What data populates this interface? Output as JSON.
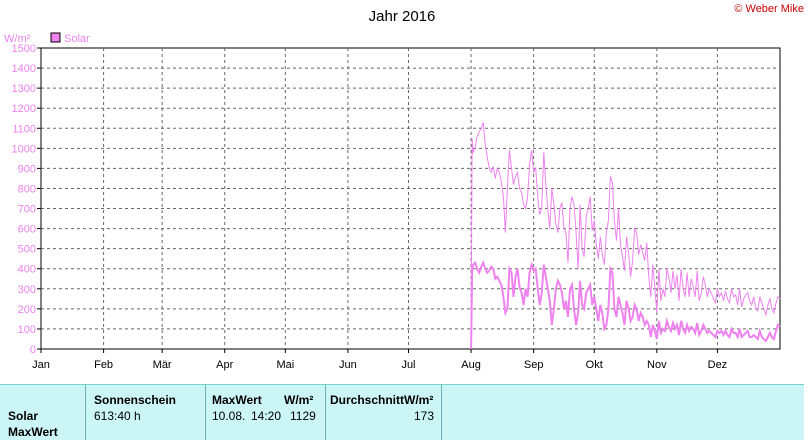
{
  "chart_data": {
    "type": "line",
    "title": "Jahr 2016",
    "ylabel": "W/m²",
    "ylim": [
      0,
      1500
    ],
    "yticks": [
      0,
      100,
      200,
      300,
      400,
      500,
      600,
      700,
      800,
      900,
      1000,
      1100,
      1200,
      1300,
      1400,
      1500
    ],
    "xlim": [
      0,
      366
    ],
    "months": [
      "Jan",
      "Feb",
      "Mär",
      "Apr",
      "Mai",
      "Jun",
      "Jul",
      "Aug",
      "Sep",
      "Okt",
      "Nov",
      "Dez"
    ],
    "month_start_days": [
      0,
      31,
      60,
      91,
      121,
      152,
      182,
      213,
      244,
      274,
      305,
      335
    ],
    "grid": true,
    "legend": "top-left",
    "line_color": "#ee82ee",
    "series": [
      {
        "name": "Solar",
        "x": [
          213,
          213.5,
          214,
          215,
          216,
          217,
          218,
          219,
          220,
          221,
          222,
          223,
          224,
          225,
          226,
          227,
          228,
          229,
          230,
          231,
          232,
          233,
          234,
          235,
          236,
          237,
          238,
          239,
          240,
          241,
          242,
          243,
          244,
          245,
          246,
          247,
          248,
          249,
          250,
          251,
          252,
          253,
          254,
          255,
          256,
          257,
          258,
          259,
          260,
          261,
          262,
          263,
          264,
          265,
          266,
          267,
          268,
          269,
          270,
          271,
          272,
          273,
          274,
          275,
          276,
          277,
          278,
          279,
          280,
          281,
          282,
          283,
          284,
          285,
          286,
          287,
          288,
          289,
          290,
          291,
          292,
          293,
          294,
          295,
          296,
          297,
          298,
          299,
          300,
          301,
          302,
          303,
          304,
          305,
          306,
          307,
          308,
          309,
          310,
          311,
          312,
          313,
          314,
          315,
          316,
          317,
          318,
          319,
          320,
          321,
          322,
          323,
          324,
          325,
          326,
          327,
          328,
          329,
          330,
          331,
          332,
          333,
          334,
          335,
          336,
          337,
          338,
          339,
          340,
          341,
          342,
          343,
          344,
          345,
          346,
          347,
          348,
          349,
          350,
          351,
          352,
          353,
          354,
          355,
          356,
          357,
          358,
          359,
          360,
          361,
          362,
          363,
          364,
          365,
          366
        ],
        "max": [
          0,
          1050,
          980,
          1000,
          1060,
          1080,
          1100,
          1129,
          1020,
          960,
          900,
          880,
          910,
          850,
          900,
          880,
          830,
          760,
          580,
          800,
          990,
          900,
          820,
          860,
          880,
          800,
          780,
          720,
          700,
          760,
          920,
          990,
          880,
          900,
          760,
          670,
          700,
          980,
          820,
          700,
          600,
          800,
          720,
          620,
          580,
          700,
          730,
          600,
          580,
          430,
          700,
          760,
          720,
          580,
          400,
          720,
          500,
          460,
          660,
          700,
          760,
          590,
          640,
          520,
          450,
          560,
          470,
          420,
          580,
          640,
          860,
          830,
          640,
          540,
          700,
          520,
          460,
          390,
          560,
          480,
          360,
          440,
          600,
          580,
          470,
          520,
          480,
          440,
          530,
          360,
          260,
          420,
          310,
          180,
          400,
          240,
          300,
          260,
          400,
          360,
          280,
          390,
          300,
          370,
          240,
          400,
          300,
          260,
          380,
          260,
          350,
          310,
          260,
          390,
          240,
          280,
          360,
          320,
          260,
          300,
          280,
          250,
          230,
          300,
          260,
          280,
          240,
          290,
          250,
          230,
          300,
          260,
          270,
          220,
          300,
          210,
          250,
          270,
          280,
          240,
          220,
          260,
          200,
          190,
          260,
          230,
          200,
          170,
          220,
          250,
          200,
          180,
          230,
          260,
          250
        ],
        "avg": [
          0,
          380,
          420,
          430,
          400,
          380,
          410,
          430,
          400,
          380,
          390,
          410,
          400,
          350,
          360,
          340,
          320,
          260,
          180,
          200,
          400,
          380,
          260,
          360,
          400,
          310,
          280,
          220,
          300,
          260,
          380,
          420,
          390,
          400,
          300,
          220,
          280,
          420,
          360,
          300,
          240,
          120,
          200,
          300,
          340,
          320,
          280,
          200,
          240,
          160,
          300,
          320,
          200,
          120,
          180,
          340,
          220,
          200,
          280,
          300,
          320,
          220,
          260,
          200,
          140,
          220,
          180,
          100,
          120,
          200,
          400,
          380,
          200,
          160,
          260,
          220,
          180,
          120,
          240,
          200,
          140,
          160,
          220,
          200,
          140,
          180,
          160,
          120,
          140,
          120,
          60,
          120,
          90,
          50,
          140,
          80,
          100,
          90,
          140,
          110,
          90,
          130,
          100,
          120,
          70,
          140,
          100,
          80,
          120,
          90,
          110,
          100,
          80,
          130,
          70,
          90,
          120,
          100,
          80,
          90,
          80,
          70,
          60,
          90,
          80,
          90,
          70,
          90,
          70,
          60,
          100,
          80,
          80,
          60,
          100,
          60,
          70,
          80,
          90,
          60,
          60,
          70,
          60,
          50,
          90,
          60,
          50,
          40,
          60,
          80,
          60,
          50,
          90,
          120,
          110
        ]
      }
    ]
  },
  "copyright": "© Weber Mike",
  "table": {
    "row_labels": [
      "Solar",
      "MaxWert"
    ],
    "sonnenschein": {
      "header": "Sonnenschein",
      "value": "613:40 h"
    },
    "maxwert": {
      "header": "MaxWert",
      "unit": "W/m²",
      "date": "10.08.",
      "time": "14:20",
      "value": "1129"
    },
    "durchschnitt": {
      "header": "Durchschnitt",
      "unit": "W/m²",
      "value": "173"
    }
  }
}
